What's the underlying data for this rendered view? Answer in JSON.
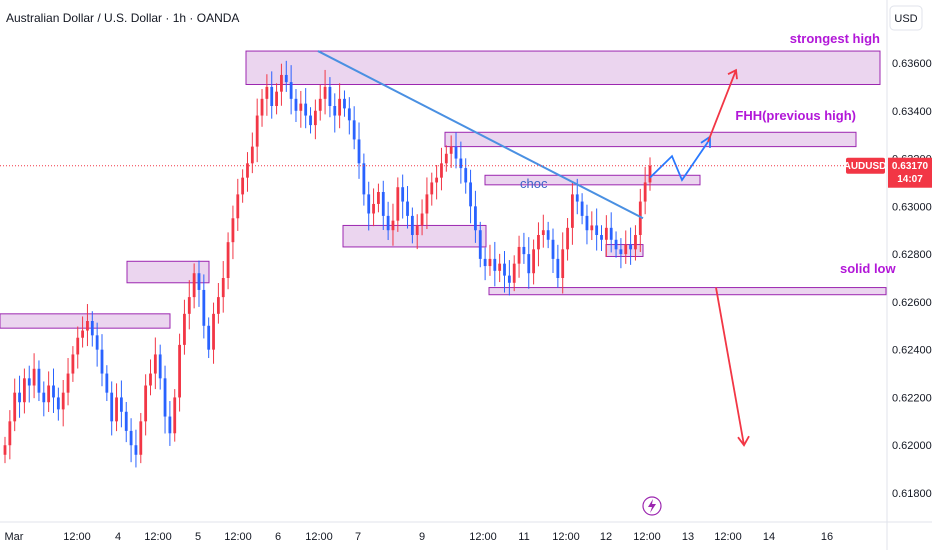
{
  "header": {
    "symbol_title": "Australian Dollar / U.S. Dollar · 1h · OANDA",
    "currency": "USD"
  },
  "price_tag": {
    "symbol": "AUDUSD",
    "price": "0.63170",
    "countdown": "14:07"
  },
  "colors": {
    "up": "#f23645",
    "down": "#2962ff",
    "zone_fill": "#e1bee7",
    "zone_stroke": "#9c27b0",
    "trendline": "#4a90e2",
    "projection_up": "#2979ff",
    "projection_down": "#f23645",
    "annotation": "#b217d8"
  },
  "annotations": {
    "strongest_high": "strongest high",
    "fhh": "FHH(previous high)",
    "solid_low": "solid low",
    "choc": "choc"
  },
  "chart_data": {
    "type": "candlestick",
    "ylabel": "USD",
    "ylim": [
      0.6172,
      0.6378
    ],
    "y_ticks": [
      "0.63600",
      "0.63400",
      "0.63200",
      "0.63000",
      "0.62800",
      "0.62600",
      "0.62400",
      "0.62200",
      "0.62000",
      "0.61800"
    ],
    "x_ticks": [
      "Mar",
      "12:00",
      "4",
      "12:00",
      "5",
      "12:00",
      "6",
      "12:00",
      "7",
      "9",
      "12:00",
      "11",
      "12:00",
      "12",
      "12:00",
      "13",
      "12:00",
      "14",
      "16"
    ],
    "current_price": 0.6317,
    "zones": [
      {
        "role": "strongest high zone",
        "low": 0.6351,
        "high": 0.6365
      },
      {
        "role": "FHH previous high zone",
        "low": 0.6325,
        "high": 0.6331
      },
      {
        "role": "choc zone",
        "low": 0.6309,
        "high": 0.6313
      },
      {
        "role": "small demand zone",
        "low": 0.6279,
        "high": 0.6284
      },
      {
        "role": "mid demand zone",
        "low": 0.6283,
        "high": 0.6292
      },
      {
        "role": "solid low zone",
        "low": 0.6263,
        "high": 0.6266
      },
      {
        "role": "left supply zone",
        "low": 0.6268,
        "high": 0.6277
      },
      {
        "role": "far left zone",
        "low": 0.6249,
        "high": 0.6255
      }
    ],
    "trendline": {
      "from": 0.6365,
      "to": 0.6295
    },
    "projection_up": [
      0.6312,
      0.6321,
      0.6311,
      0.6327
    ],
    "projection_up_target": 0.6357,
    "projection_down_target": 0.62,
    "projection_down_from": 0.6266,
    "candles_close": [
      0.62,
      0.621,
      0.6222,
      0.6218,
      0.6228,
      0.6225,
      0.6232,
      0.6222,
      0.6218,
      0.6225,
      0.622,
      0.6215,
      0.6222,
      0.623,
      0.6238,
      0.6245,
      0.6248,
      0.6252,
      0.6246,
      0.624,
      0.623,
      0.6222,
      0.621,
      0.622,
      0.6214,
      0.6206,
      0.62,
      0.6196,
      0.621,
      0.6225,
      0.623,
      0.6238,
      0.6228,
      0.6212,
      0.6205,
      0.622,
      0.6242,
      0.6255,
      0.6262,
      0.6272,
      0.6265,
      0.625,
      0.624,
      0.6255,
      0.6262,
      0.627,
      0.6285,
      0.6295,
      0.6305,
      0.6312,
      0.6318,
      0.6325,
      0.6338,
      0.6345,
      0.635,
      0.6342,
      0.6348,
      0.6355,
      0.6352,
      0.6345,
      0.634,
      0.6343,
      0.6338,
      0.6334,
      0.634,
      0.6345,
      0.635,
      0.6342,
      0.6338,
      0.6345,
      0.6341,
      0.6336,
      0.6328,
      0.6318,
      0.6305,
      0.6297,
      0.6301,
      0.6306,
      0.6296,
      0.629,
      0.6294,
      0.6308,
      0.6302,
      0.6296,
      0.6288,
      0.6292,
      0.6297,
      0.6305,
      0.631,
      0.6312,
      0.6318,
      0.6322,
      0.6325,
      0.632,
      0.6316,
      0.631,
      0.63,
      0.629,
      0.6278,
      0.6275,
      0.6278,
      0.6273,
      0.6276,
      0.6271,
      0.6268,
      0.6276,
      0.6283,
      0.628,
      0.6272,
      0.6282,
      0.6288,
      0.629,
      0.6286,
      0.6278,
      0.627,
      0.6282,
      0.6291,
      0.6305,
      0.6302,
      0.6296,
      0.629,
      0.6292,
      0.6288,
      0.6286,
      0.6291,
      0.6286,
      0.6282,
      0.628,
      0.6284,
      0.6282,
      0.6288,
      0.6302,
      0.631,
      0.6317
    ]
  }
}
